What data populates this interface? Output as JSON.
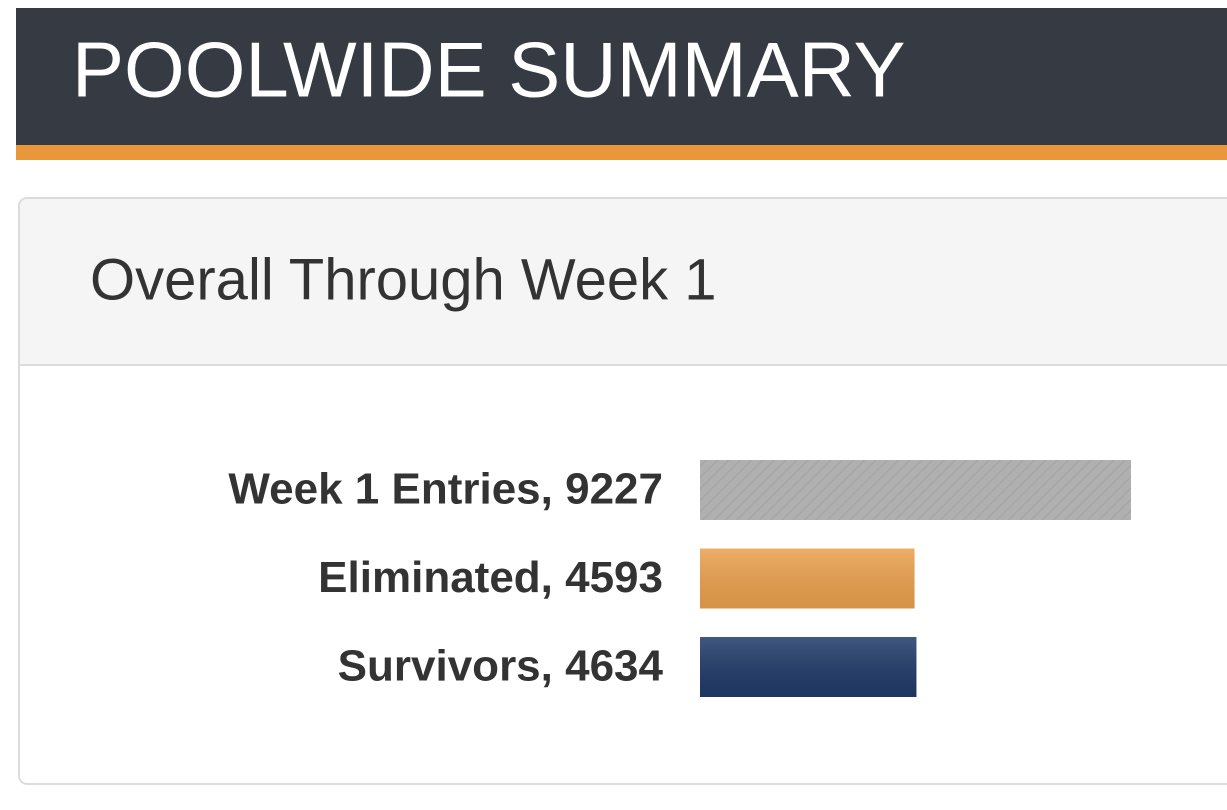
{
  "header": {
    "title": "POOLWIDE SUMMARY"
  },
  "panel": {
    "title": "Overall Through Week 1"
  },
  "chart_data": {
    "type": "bar",
    "orientation": "horizontal",
    "categories": [
      "Week 1 Entries, 9227",
      "Eliminated, 4593",
      "Survivors, 4634"
    ],
    "values": [
      9227,
      4593,
      4634
    ],
    "colors": [
      "#b0b0b0",
      "#e9a04c",
      "#1f3a68"
    ]
  }
}
